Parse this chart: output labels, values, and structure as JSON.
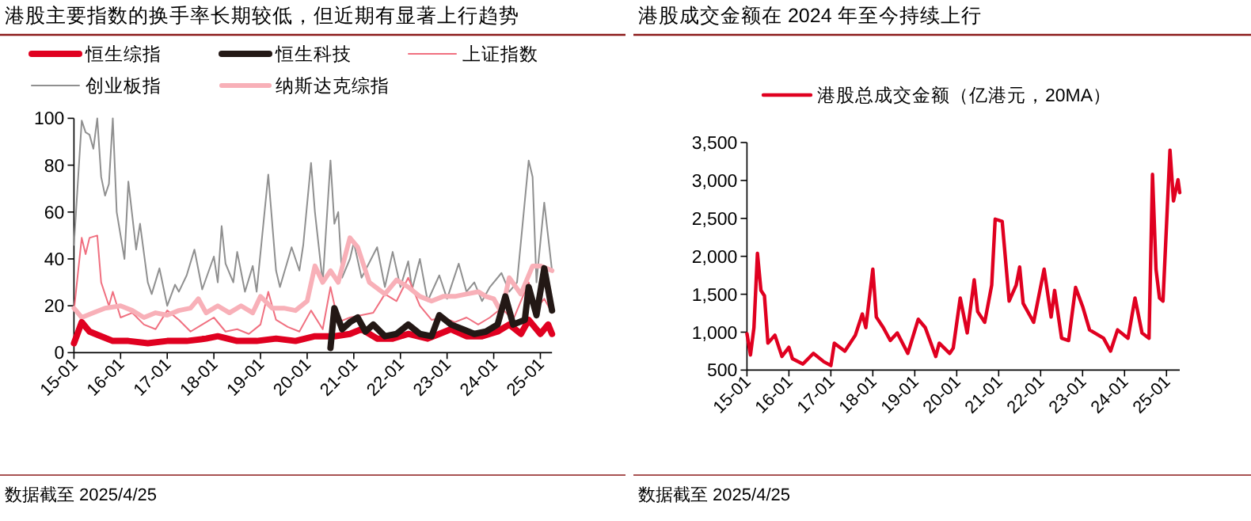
{
  "chart_data": [
    {
      "type": "line",
      "title": "港股主要指数的换手率长期较低，但近期有显著上行趋势",
      "legend": "top",
      "grid": false,
      "marker": "none",
      "line_style": "solid",
      "xlim": [
        "2015-01",
        "2025-04"
      ],
      "ylim": [
        0,
        100
      ],
      "yticks": [
        0,
        20,
        40,
        60,
        80,
        100
      ],
      "xticks": [
        {
          "value": "2015-01",
          "label": "15-01"
        },
        {
          "value": "2016-01",
          "label": "16-01"
        },
        {
          "value": "2017-01",
          "label": "17-01"
        },
        {
          "value": "2018-01",
          "label": "18-01"
        },
        {
          "value": "2019-01",
          "label": "19-01"
        },
        {
          "value": "2020-01",
          "label": "20-01"
        },
        {
          "value": "2021-01",
          "label": "21-01"
        },
        {
          "value": "2022-01",
          "label": "22-01"
        },
        {
          "value": "2023-01",
          "label": "23-01"
        },
        {
          "value": "2024-01",
          "label": "24-01"
        },
        {
          "value": "2025-01",
          "label": "25-01"
        }
      ],
      "series": [
        {
          "name": "恒生综指",
          "color": "#e00020",
          "x": [
            "2015-01",
            "2015-03",
            "2015-05",
            "2015-08",
            "2015-11",
            "2016-03",
            "2016-08",
            "2017-01",
            "2017-06",
            "2017-11",
            "2018-02",
            "2018-07",
            "2018-12",
            "2019-05",
            "2019-10",
            "2020-03",
            "2020-08",
            "2020-12",
            "2021-03",
            "2021-07",
            "2021-11",
            "2022-03",
            "2022-08",
            "2022-11",
            "2023-02",
            "2023-06",
            "2023-10",
            "2024-02",
            "2024-05",
            "2024-08",
            "2024-10",
            "2025-01",
            "2025-03",
            "2025-04"
          ],
          "values": [
            4,
            13,
            9,
            7,
            5,
            5,
            4,
            5,
            5,
            6,
            7,
            5,
            5,
            6,
            5,
            7,
            7,
            8,
            10,
            6,
            6,
            8,
            6,
            8,
            10,
            7,
            7,
            9,
            12,
            8,
            14,
            8,
            12,
            8
          ]
        },
        {
          "name": "恒生科技",
          "color": "#231815",
          "x": [
            "2020-07",
            "2020-08",
            "2020-10",
            "2020-12",
            "2021-02",
            "2021-04",
            "2021-06",
            "2021-09",
            "2021-12",
            "2022-03",
            "2022-06",
            "2022-09",
            "2022-11",
            "2023-02",
            "2023-05",
            "2023-08",
            "2023-11",
            "2024-02",
            "2024-04",
            "2024-06",
            "2024-09",
            "2024-10",
            "2024-12",
            "2025-02",
            "2025-04"
          ],
          "values": [
            2,
            19,
            10,
            13,
            15,
            9,
            12,
            7,
            8,
            12,
            8,
            7,
            16,
            12,
            10,
            8,
            9,
            12,
            24,
            12,
            14,
            28,
            16,
            36,
            18
          ]
        },
        {
          "name": "上证指数",
          "color": "#f07080",
          "x": [
            "2015-01",
            "2015-03",
            "2015-04",
            "2015-05",
            "2015-07",
            "2015-08",
            "2015-10",
            "2015-11",
            "2016-01",
            "2016-04",
            "2016-07",
            "2016-10",
            "2017-01",
            "2017-04",
            "2017-07",
            "2017-10",
            "2018-01",
            "2018-04",
            "2018-07",
            "2018-10",
            "2019-01",
            "2019-03",
            "2019-05",
            "2019-08",
            "2019-11",
            "2020-02",
            "2020-05",
            "2020-07",
            "2020-09",
            "2020-12",
            "2021-03",
            "2021-06",
            "2021-09",
            "2021-12",
            "2022-03",
            "2022-06",
            "2022-09",
            "2022-12",
            "2023-03",
            "2023-06",
            "2023-09",
            "2023-12",
            "2024-03",
            "2024-06",
            "2024-10",
            "2024-12",
            "2025-02",
            "2025-04"
          ],
          "values": [
            18,
            49,
            42,
            49,
            50,
            30,
            20,
            26,
            15,
            17,
            12,
            10,
            18,
            14,
            9,
            12,
            15,
            9,
            10,
            8,
            12,
            26,
            14,
            11,
            9,
            18,
            10,
            28,
            13,
            15,
            16,
            17,
            25,
            22,
            32,
            20,
            14,
            15,
            13,
            15,
            12,
            15,
            19,
            14,
            30,
            19,
            23,
            17
          ]
        },
        {
          "name": "创业板指",
          "color": "#909090",
          "x": [
            "2015-01",
            "2015-03",
            "2015-04",
            "2015-05",
            "2015-06",
            "2015-07",
            "2015-08",
            "2015-09",
            "2015-10",
            "2015-11",
            "2015-12",
            "2016-02",
            "2016-03",
            "2016-05",
            "2016-06",
            "2016-08",
            "2016-09",
            "2016-11",
            "2017-01",
            "2017-03",
            "2017-04",
            "2017-06",
            "2017-08",
            "2017-10",
            "2018-01",
            "2018-02",
            "2018-03",
            "2018-04",
            "2018-06",
            "2018-07",
            "2018-09",
            "2018-11",
            "2018-12",
            "2019-03",
            "2019-05",
            "2019-06",
            "2019-09",
            "2019-11",
            "2019-12",
            "2020-02",
            "2020-03",
            "2020-05",
            "2020-07",
            "2020-08",
            "2020-09",
            "2020-10",
            "2020-12",
            "2021-01",
            "2021-03",
            "2021-07",
            "2021-09",
            "2021-11",
            "2022-01",
            "2022-03",
            "2022-04",
            "2022-06",
            "2022-08",
            "2022-11",
            "2023-01",
            "2023-04",
            "2023-06",
            "2023-08",
            "2023-10",
            "2023-12",
            "2024-03",
            "2024-05",
            "2024-07",
            "2024-10",
            "2024-11",
            "2024-12",
            "2025-02",
            "2025-04"
          ],
          "values": [
            46,
            99,
            94,
            93,
            87,
            100,
            75,
            67,
            72,
            100,
            60,
            40,
            73,
            44,
            55,
            30,
            25,
            36,
            20,
            29,
            26,
            33,
            44,
            27,
            41,
            30,
            54,
            38,
            30,
            43,
            26,
            37,
            26,
            76,
            35,
            28,
            45,
            35,
            46,
            81,
            60,
            30,
            82,
            55,
            60,
            32,
            40,
            47,
            32,
            45,
            28,
            43,
            28,
            39,
            27,
            40,
            22,
            33,
            23,
            38,
            26,
            30,
            22,
            28,
            34,
            26,
            30,
            82,
            75,
            30,
            64,
            35
          ]
        },
        {
          "name": "纳斯达克综指",
          "color": "#f8b0b8",
          "x": [
            "2015-01",
            "2015-03",
            "2015-06",
            "2015-09",
            "2016-01",
            "2016-04",
            "2016-07",
            "2016-10",
            "2017-01",
            "2017-04",
            "2017-07",
            "2017-09",
            "2017-11",
            "2018-02",
            "2018-05",
            "2018-08",
            "2018-11",
            "2019-01",
            "2019-04",
            "2019-07",
            "2019-10",
            "2020-01",
            "2020-03",
            "2020-05",
            "2020-07",
            "2020-09",
            "2020-12",
            "2021-02",
            "2021-05",
            "2021-09",
            "2021-12",
            "2022-03",
            "2022-06",
            "2022-09",
            "2022-12",
            "2023-03",
            "2023-06",
            "2023-09",
            "2023-11",
            "2024-01",
            "2024-03",
            "2024-05",
            "2024-08",
            "2024-11",
            "2025-01",
            "2025-04"
          ],
          "values": [
            19,
            15,
            17,
            19,
            20,
            18,
            15,
            17,
            16,
            18,
            19,
            23,
            17,
            20,
            17,
            20,
            17,
            24,
            19,
            19,
            18,
            22,
            37,
            30,
            35,
            30,
            49,
            45,
            30,
            25,
            31,
            28,
            24,
            22,
            24,
            24,
            25,
            26,
            24,
            23,
            17,
            32,
            25,
            37,
            37,
            35
          ]
        }
      ],
      "annotations": [
        "数据截至 2025/4/25"
      ]
    },
    {
      "type": "line",
      "title": "港股成交金额在 2024 年至今持续上行",
      "legend": "top",
      "grid": false,
      "marker": "none",
      "line_style": "solid",
      "xlim": [
        "2015-01",
        "2025-04-25"
      ],
      "ylim": [
        500,
        3500
      ],
      "yticks": [
        500,
        {
          "value": 1000,
          "label": "1,000"
        },
        {
          "value": 1500,
          "label": "1,500"
        },
        {
          "value": 2000,
          "label": "2,000"
        },
        {
          "value": 2500,
          "label": "2,500"
        },
        {
          "value": 3000,
          "label": "3,000"
        },
        {
          "value": 3500,
          "label": "3,500"
        }
      ],
      "xticks": [
        {
          "value": "2015-01",
          "label": "15-01"
        },
        {
          "value": "2016-01",
          "label": "16-01"
        },
        {
          "value": "2017-01",
          "label": "17-01"
        },
        {
          "value": "2018-01",
          "label": "18-01"
        },
        {
          "value": "2019-01",
          "label": "19-01"
        },
        {
          "value": "2020-01",
          "label": "20-01"
        },
        {
          "value": "2021-01",
          "label": "21-01"
        },
        {
          "value": "2022-01",
          "label": "22-01"
        },
        {
          "value": "2023-01",
          "label": "23-01"
        },
        {
          "value": "2024-01",
          "label": "24-01"
        },
        {
          "value": "2025-01",
          "label": "25-01"
        }
      ],
      "series": [
        {
          "name": "港股总成交金额（亿港元，20MA）",
          "color": "#e00020",
          "x": [
            "2015-01",
            "2015-02",
            "2015-03",
            "2015-04",
            "2015-05",
            "2015-06",
            "2015-07",
            "2015-09",
            "2015-11",
            "2016-01",
            "2016-02",
            "2016-05",
            "2016-08",
            "2016-11",
            "2017-01",
            "2017-02",
            "2017-05",
            "2017-08",
            "2017-10",
            "2017-11",
            "2018-01",
            "2018-02",
            "2018-04",
            "2018-06",
            "2018-08",
            "2018-11",
            "2019-02",
            "2019-04",
            "2019-07",
            "2019-08",
            "2019-11",
            "2019-12",
            "2020-02",
            "2020-04",
            "2020-06",
            "2020-07",
            "2020-09",
            "2020-11",
            "2020-12",
            "2021-02",
            "2021-04",
            "2021-06",
            "2021-07",
            "2021-08",
            "2021-11",
            "2022-02",
            "2022-04",
            "2022-05",
            "2022-07",
            "2022-09",
            "2022-11",
            "2023-01",
            "2023-03",
            "2023-07",
            "2023-09",
            "2023-11",
            "2024-02",
            "2024-04",
            "2024-06",
            "2024-08",
            "2024-09",
            "2024-10",
            "2024-11",
            "2024-12",
            "2025-02",
            "2025-03",
            "2025-04-10",
            "2025-04-25"
          ],
          "values": [
            980,
            700,
            1060,
            2040,
            1550,
            1480,
            855,
            960,
            680,
            800,
            650,
            580,
            720,
            610,
            560,
            855,
            750,
            960,
            1240,
            1060,
            1830,
            1200,
            1060,
            890,
            990,
            720,
            1170,
            1060,
            680,
            855,
            720,
            790,
            1450,
            990,
            1690,
            1270,
            1130,
            1620,
            2490,
            2460,
            1410,
            1620,
            1860,
            1380,
            1130,
            1830,
            1200,
            1550,
            920,
            890,
            1590,
            1340,
            1030,
            920,
            750,
            1030,
            920,
            1450,
            990,
            920,
            3080,
            1830,
            1450,
            1410,
            3400,
            2730,
            3010,
            2840
          ]
        }
      ],
      "annotations": [
        "数据截至 2025/4/25"
      ]
    }
  ]
}
